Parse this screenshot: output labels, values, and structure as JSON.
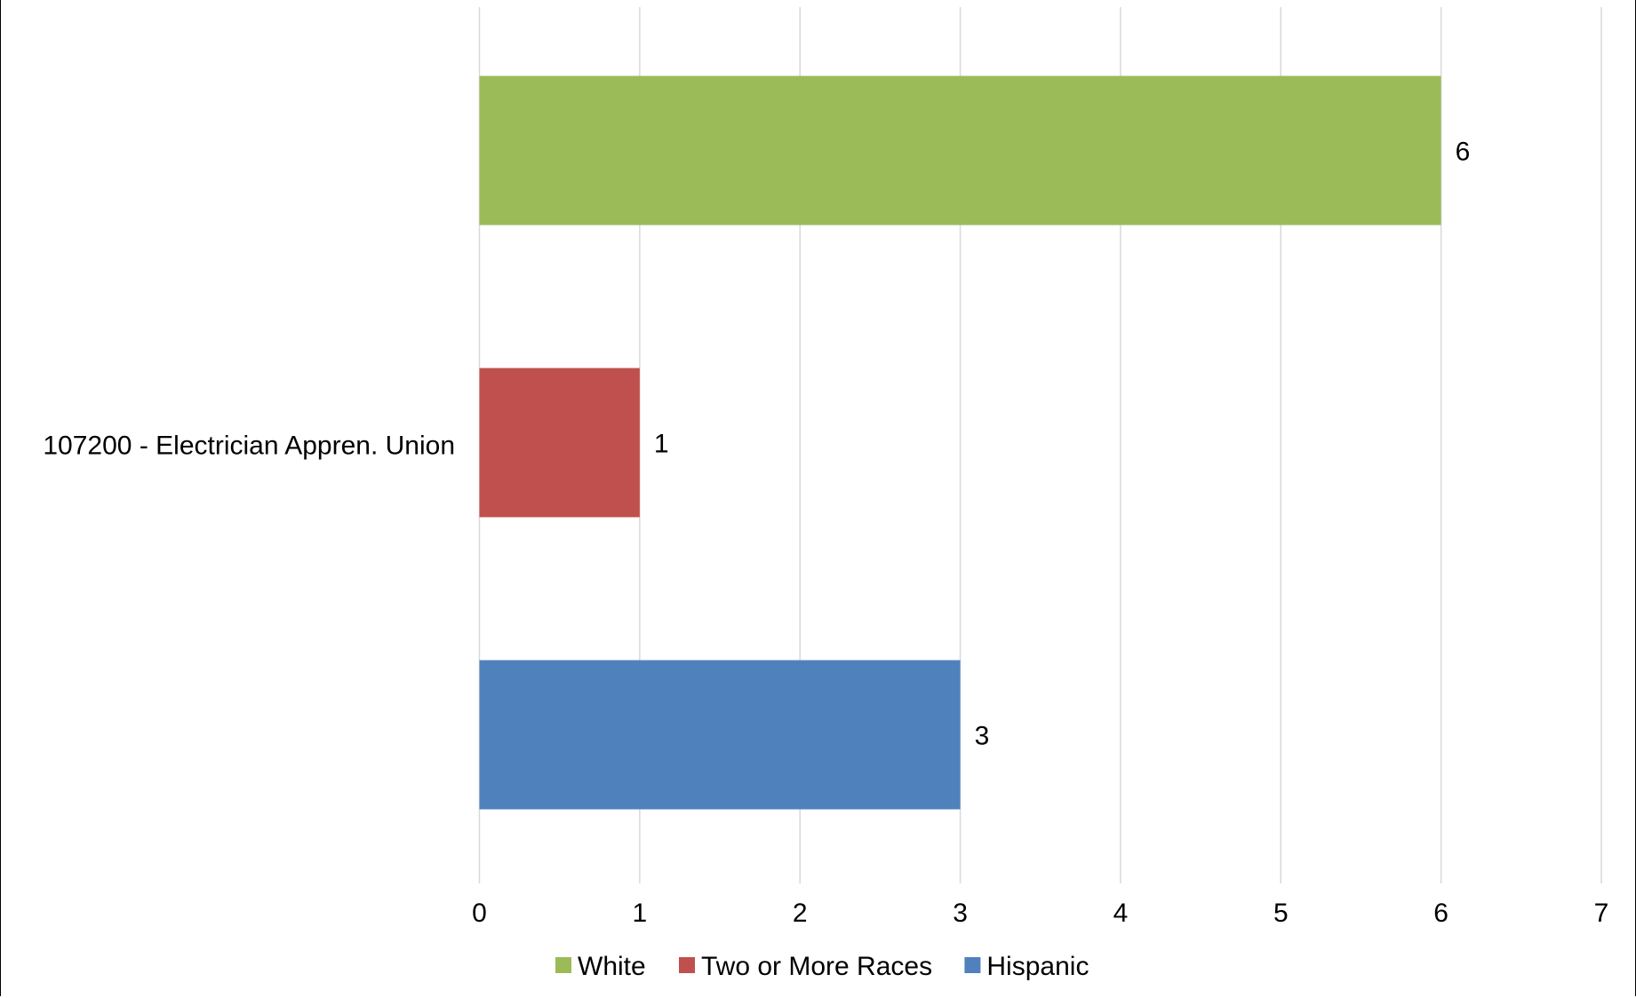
{
  "chart_data": {
    "type": "bar",
    "orientation": "horizontal",
    "categories": [
      "107200 - Electrician Appren. Union"
    ],
    "series": [
      {
        "name": "Hispanic",
        "color": "#4f81bd",
        "values": [
          3
        ]
      },
      {
        "name": "Two or More Races",
        "color": "#c0504d",
        "values": [
          1
        ]
      },
      {
        "name": "White",
        "color": "#9bbb59",
        "values": [
          6
        ]
      }
    ],
    "xlim": [
      0,
      7
    ],
    "xticks": [
      "0",
      "1",
      "2",
      "3",
      "4",
      "5",
      "6",
      "7"
    ],
    "data_labels": true,
    "grid": "vertical",
    "legend": "bottom",
    "legend_order": [
      "White",
      "Two or More Races",
      "Hispanic"
    ]
  }
}
